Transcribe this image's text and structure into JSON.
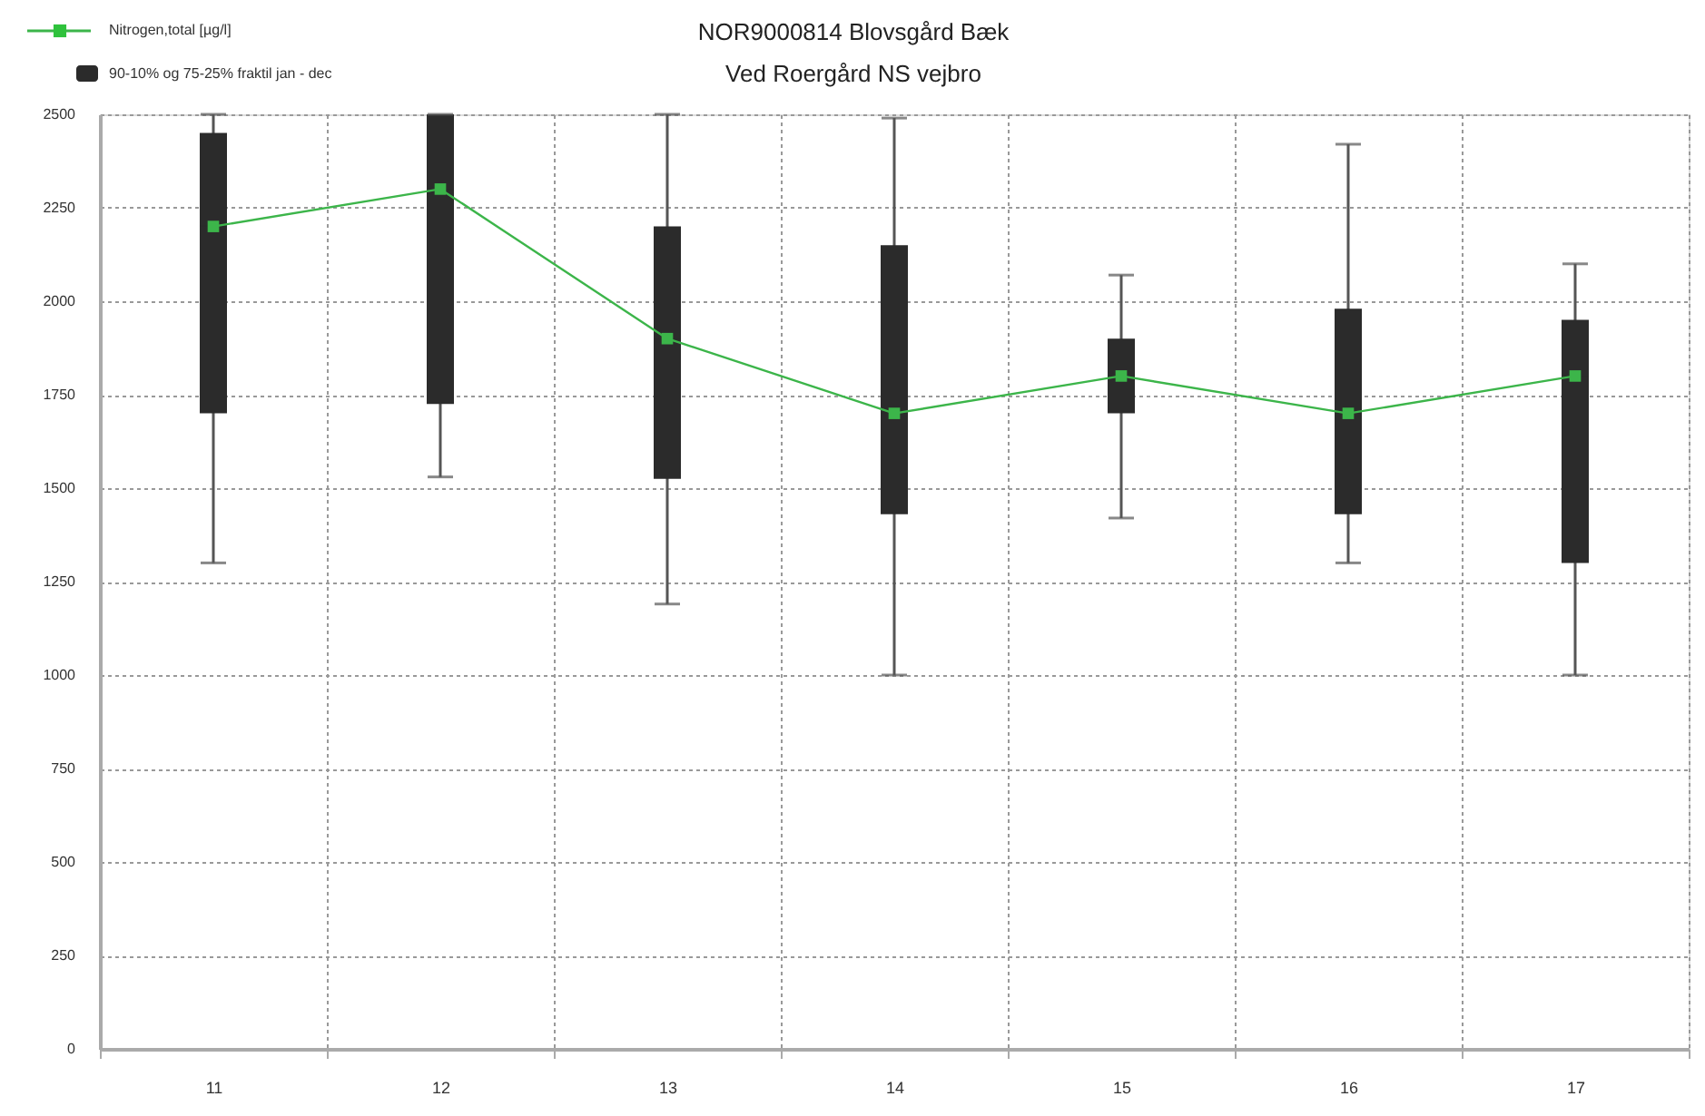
{
  "chart_data": {
    "type": "box",
    "title": "NOR9000814 Blovsgård Bæk",
    "subtitle": "Ved Roergård NS vejbro",
    "categories": [
      "11",
      "12",
      "13",
      "14",
      "15",
      "16",
      "17"
    ],
    "ylim": [
      0,
      2500
    ],
    "yticks": [
      0,
      250,
      500,
      750,
      1000,
      1250,
      1500,
      1750,
      2000,
      2250,
      2500
    ],
    "grid": true,
    "legend": "top left",
    "series": [
      {
        "name": "Nitrogen,total [µg/l]",
        "type": "line",
        "color": "#3cb54a",
        "marker": "square",
        "values": [
          2200,
          2300,
          1900,
          1700,
          1800,
          1700,
          1800
        ]
      },
      {
        "name": "90-10% og 75-25% fraktil jan - dec",
        "color": "#2b2b2b",
        "boxes": [
          {
            "low": 1300,
            "q1": 1700,
            "median": 2200,
            "q3": 2450,
            "high": 2500
          },
          {
            "low": 1530,
            "q1": 1725,
            "median": 2300,
            "q3": 2500,
            "high": 2500
          },
          {
            "low": 1190,
            "q1": 1525,
            "median": 1900,
            "q3": 2200,
            "high": 2500
          },
          {
            "low": 1000,
            "q1": 1430,
            "median": 1700,
            "q3": 2150,
            "high": 2490
          },
          {
            "low": 1420,
            "q1": 1700,
            "median": 1800,
            "q3": 1900,
            "high": 2070
          },
          {
            "low": 1300,
            "q1": 1430,
            "median": 1700,
            "q3": 1980,
            "high": 2420
          },
          {
            "low": 1000,
            "q1": 1300,
            "median": 1800,
            "q3": 1950,
            "high": 2100
          }
        ]
      }
    ]
  }
}
